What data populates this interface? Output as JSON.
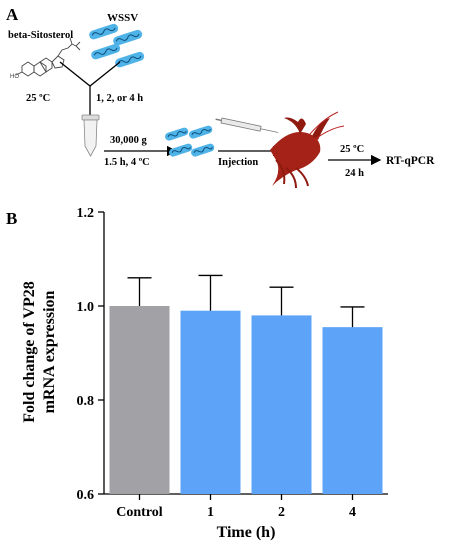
{
  "panel_a": {
    "label": "A",
    "compound": "beta-Sitosterol",
    "virus": "WSSV",
    "incubation_temp": "25 ºC",
    "incubation_time": "1, 2, or 4 h",
    "centrifuge_speed": "30,000 g",
    "centrifuge_cond": "1.5 h, 4 ºC",
    "injection": "Injection",
    "post_temp": "25 ºC",
    "post_time": "24 h",
    "assay": "RT-qPCR",
    "icons": [
      "molecule-structure-icon",
      "virus-particles-icon",
      "centrifuge-tube-icon",
      "syringe-icon",
      "crayfish-icon"
    ]
  },
  "panel_b": {
    "label": "B"
  },
  "chart_data": {
    "type": "bar",
    "categories": [
      "Control",
      "1",
      "2",
      "4"
    ],
    "values": [
      1.0,
      0.99,
      0.98,
      0.955
    ],
    "errors": [
      0.06,
      0.075,
      0.06,
      0.043
    ],
    "colors": [
      "#a2a2a6",
      "#5da3f7",
      "#5da3f7",
      "#5da3f7"
    ],
    "yticks": [
      "0.6",
      "0.8",
      "1.0",
      "1.2"
    ],
    "ylim": [
      0.6,
      1.2
    ],
    "ylabel_line1": "Fold change of VP28",
    "ylabel_line2": "mRNA expression",
    "xlabel": "Time (h)"
  }
}
